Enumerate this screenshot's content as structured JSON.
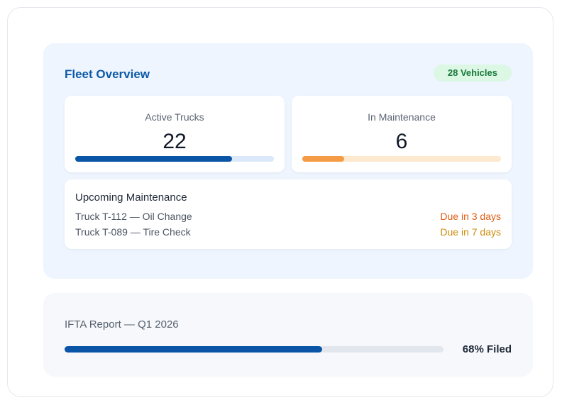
{
  "fleet": {
    "title": "Fleet Overview",
    "badge": "28 Vehicles",
    "active": {
      "label": "Active Trucks",
      "value": "22",
      "fraction": 0.79
    },
    "maintenance": {
      "label": "In Maintenance",
      "value": "6",
      "fraction": 0.21
    },
    "upcoming": {
      "title": "Upcoming Maintenance",
      "items": [
        {
          "task": "Truck T-112 — Oil Change",
          "due": "Due in 3 days"
        },
        {
          "task": "Truck T-089 — Tire Check",
          "due": "Due in 7 days"
        }
      ]
    }
  },
  "ifta": {
    "title": "IFTA Report — Q1 2026",
    "progress": 0.68,
    "label": "68% Filed"
  },
  "colors": {
    "accent": "#0b55a6",
    "active_track": "#dbe9fb",
    "maintenance_fill": "#f59a45",
    "maintenance_track": "#fde9cf",
    "badge_bg": "#dcf7e4",
    "badge_text": "#177a3a",
    "due_soon": "#e05d12",
    "due_later": "#cc8a0a"
  }
}
